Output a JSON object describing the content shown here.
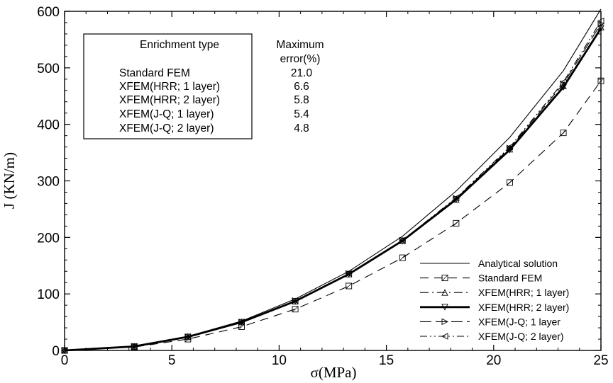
{
  "chart_data": {
    "type": "line",
    "xlabel": "σ(MPa)",
    "ylabel": "J (KN/m)",
    "xlim": [
      0,
      25
    ],
    "ylim": [
      0,
      600
    ],
    "xticks": [
      "0",
      "5",
      "10",
      "15",
      "20",
      "25"
    ],
    "yticks": [
      "0",
      "100",
      "200",
      "300",
      "400",
      "500",
      "600"
    ],
    "grid": false,
    "legend_position": "bottom-right",
    "series": [
      {
        "name": "Analytical solution",
        "style": "solid",
        "marker": "none",
        "x": [
          0,
          3.25,
          5.75,
          8.25,
          10.75,
          13.25,
          15.75,
          18.25,
          20.75,
          23.25,
          25
        ],
        "values": [
          0,
          8,
          25,
          52,
          91,
          140,
          202,
          282,
          377,
          495,
          604
        ]
      },
      {
        "name": "Standard FEM",
        "style": "dashed",
        "marker": "square",
        "x": [
          0,
          3.25,
          5.75,
          8.25,
          10.75,
          13.25,
          15.75,
          18.25,
          20.75,
          23.25,
          25
        ],
        "values": [
          0,
          6,
          20,
          42,
          73,
          114,
          164,
          225,
          297,
          385,
          477
        ]
      },
      {
        "name": "XFEM(HRR; 1 layer)",
        "style": "dashdot",
        "marker": "triangle-up",
        "x": [
          0,
          3.25,
          5.75,
          8.25,
          10.75,
          13.25,
          15.75,
          18.25,
          20.75,
          23.25,
          25
        ],
        "values": [
          0,
          7,
          24,
          50,
          87,
          135,
          194,
          267,
          356,
          468,
          572
        ]
      },
      {
        "name": "XFEM(HRR; 2 layer)",
        "style": "thick",
        "marker": "triangle-down",
        "x": [
          0,
          3.25,
          5.75,
          8.25,
          10.75,
          13.25,
          15.75,
          18.25,
          20.75,
          23.25,
          25
        ],
        "values": [
          0,
          7,
          24,
          50,
          87,
          135,
          194,
          267,
          355,
          466,
          570
        ]
      },
      {
        "name": "XFEM(J-Q; 1 layer",
        "style": "longdash",
        "marker": "triangle-right",
        "x": [
          0,
          3.25,
          5.75,
          8.25,
          10.75,
          13.25,
          15.75,
          18.25,
          20.75,
          23.25,
          25
        ],
        "values": [
          0,
          7,
          24,
          50,
          88,
          136,
          195,
          269,
          358,
          472,
          578
        ]
      },
      {
        "name": "XFEM(J-Q; 2 layer)",
        "style": "dashdotdot",
        "marker": "triangle-left",
        "x": [
          0,
          3.25,
          5.75,
          8.25,
          10.75,
          13.25,
          15.75,
          18.25,
          20.75,
          23.25,
          25
        ],
        "values": [
          0,
          7,
          24,
          50,
          88,
          136,
          195,
          270,
          360,
          475,
          583
        ]
      }
    ],
    "annotation_table": {
      "headers": [
        "Enrichment type",
        "Maximum",
        "error(%)"
      ],
      "rows": [
        [
          "Standard FEM",
          "21.0"
        ],
        [
          "XFEM(HRR; 1 layer)",
          "6.6"
        ],
        [
          "XFEM(HRR; 2 layer)",
          "5.8"
        ],
        [
          "XFEM(J-Q; 1 layer)",
          "5.4"
        ],
        [
          "XFEM(J-Q; 2 layer)",
          "4.8"
        ]
      ]
    }
  }
}
